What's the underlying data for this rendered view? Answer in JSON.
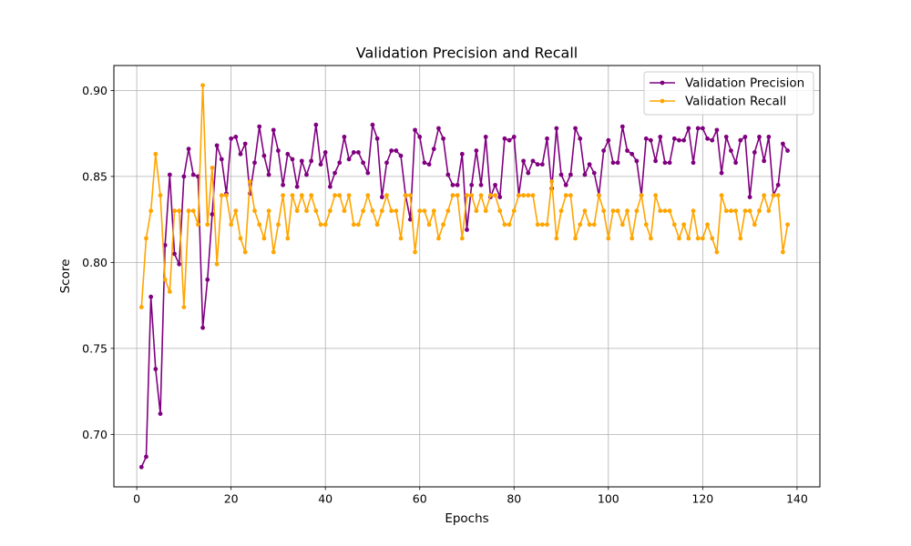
{
  "chart_data": {
    "type": "line",
    "title": "Validation Precision and Recall",
    "xlabel": "Epochs",
    "ylabel": "Score",
    "xlim": [
      -4.85,
      144.85
    ],
    "ylim": [
      0.6695,
      0.9145
    ],
    "xticks": [
      0,
      20,
      40,
      60,
      80,
      100,
      120,
      140
    ],
    "xtick_labels": [
      "0",
      "20",
      "40",
      "60",
      "80",
      "100",
      "120",
      "140"
    ],
    "yticks": [
      0.7,
      0.75,
      0.8,
      0.85,
      0.9
    ],
    "ytick_labels": [
      "0.70",
      "0.75",
      "0.80",
      "0.85",
      "0.90"
    ],
    "grid": true,
    "legend_position": "top-right",
    "x": [
      1,
      2,
      3,
      4,
      5,
      6,
      7,
      8,
      9,
      10,
      11,
      12,
      13,
      14,
      15,
      16,
      17,
      18,
      19,
      20,
      21,
      22,
      23,
      24,
      25,
      26,
      27,
      28,
      29,
      30,
      31,
      32,
      33,
      34,
      35,
      36,
      37,
      38,
      39,
      40,
      41,
      42,
      43,
      44,
      45,
      46,
      47,
      48,
      49,
      50,
      51,
      52,
      53,
      54,
      55,
      56,
      57,
      58,
      59,
      60,
      61,
      62,
      63,
      64,
      65,
      66,
      67,
      68,
      69,
      70,
      71,
      72,
      73,
      74,
      75,
      76,
      77,
      78,
      79,
      80,
      81,
      82,
      83,
      84,
      85,
      86,
      87,
      88,
      89,
      90,
      91,
      92,
      93,
      94,
      95,
      96,
      97,
      98,
      99,
      100,
      101,
      102,
      103,
      104,
      105,
      106,
      107,
      108,
      109,
      110,
      111,
      112,
      113,
      114,
      115,
      116,
      117,
      118,
      119,
      120,
      121,
      122,
      123,
      124,
      125,
      126,
      127,
      128,
      129,
      130,
      131,
      132,
      133,
      134,
      135,
      136,
      137,
      138
    ],
    "series": [
      {
        "name": "Validation Precision",
        "color": "#800080",
        "values": [
          0.681,
          0.687,
          0.78,
          0.738,
          0.712,
          0.81,
          0.851,
          0.805,
          0.799,
          0.85,
          0.866,
          0.851,
          0.85,
          0.762,
          0.79,
          0.828,
          0.868,
          0.86,
          0.84,
          0.872,
          0.873,
          0.863,
          0.869,
          0.84,
          0.858,
          0.879,
          0.862,
          0.851,
          0.877,
          0.865,
          0.845,
          0.863,
          0.86,
          0.844,
          0.859,
          0.851,
          0.859,
          0.88,
          0.857,
          0.864,
          0.844,
          0.852,
          0.858,
          0.873,
          0.86,
          0.864,
          0.864,
          0.858,
          0.852,
          0.88,
          0.872,
          0.838,
          0.858,
          0.865,
          0.865,
          0.862,
          0.839,
          0.825,
          0.877,
          0.873,
          0.858,
          0.857,
          0.866,
          0.878,
          0.872,
          0.851,
          0.845,
          0.845,
          0.863,
          0.819,
          0.845,
          0.865,
          0.845,
          0.873,
          0.838,
          0.845,
          0.838,
          0.872,
          0.871,
          0.873,
          0.839,
          0.859,
          0.852,
          0.859,
          0.857,
          0.857,
          0.872,
          0.843,
          0.878,
          0.851,
          0.845,
          0.851,
          0.878,
          0.872,
          0.851,
          0.857,
          0.852,
          0.839,
          0.865,
          0.871,
          0.858,
          0.858,
          0.879,
          0.865,
          0.863,
          0.859,
          0.839,
          0.872,
          0.871,
          0.859,
          0.873,
          0.858,
          0.858,
          0.872,
          0.871,
          0.871,
          0.878,
          0.858,
          0.878,
          0.878,
          0.872,
          0.871,
          0.877,
          0.852,
          0.873,
          0.865,
          0.858,
          0.871,
          0.873,
          0.838,
          0.864,
          0.873,
          0.859,
          0.873,
          0.839,
          0.845,
          0.869,
          0.865
        ]
      },
      {
        "name": "Validation Recall",
        "color": "#FFA500",
        "values": [
          0.774,
          0.814,
          0.83,
          0.863,
          0.839,
          0.79,
          0.783,
          0.83,
          0.83,
          0.774,
          0.83,
          0.83,
          0.822,
          0.903,
          0.822,
          0.855,
          0.799,
          0.839,
          0.839,
          0.822,
          0.83,
          0.814,
          0.806,
          0.847,
          0.83,
          0.822,
          0.814,
          0.83,
          0.806,
          0.822,
          0.839,
          0.814,
          0.839,
          0.83,
          0.839,
          0.83,
          0.839,
          0.83,
          0.822,
          0.822,
          0.83,
          0.839,
          0.839,
          0.83,
          0.839,
          0.822,
          0.822,
          0.83,
          0.839,
          0.83,
          0.822,
          0.83,
          0.839,
          0.83,
          0.83,
          0.814,
          0.839,
          0.839,
          0.806,
          0.83,
          0.83,
          0.822,
          0.83,
          0.814,
          0.822,
          0.83,
          0.839,
          0.839,
          0.814,
          0.839,
          0.839,
          0.83,
          0.839,
          0.83,
          0.839,
          0.839,
          0.83,
          0.822,
          0.822,
          0.83,
          0.839,
          0.839,
          0.839,
          0.839,
          0.822,
          0.822,
          0.822,
          0.847,
          0.814,
          0.83,
          0.839,
          0.839,
          0.814,
          0.822,
          0.83,
          0.822,
          0.822,
          0.839,
          0.83,
          0.814,
          0.83,
          0.83,
          0.822,
          0.83,
          0.814,
          0.83,
          0.839,
          0.822,
          0.814,
          0.839,
          0.83,
          0.83,
          0.83,
          0.822,
          0.814,
          0.822,
          0.814,
          0.83,
          0.814,
          0.814,
          0.822,
          0.814,
          0.806,
          0.839,
          0.83,
          0.83,
          0.83,
          0.814,
          0.83,
          0.83,
          0.822,
          0.83,
          0.839,
          0.83,
          0.839,
          0.839,
          0.806,
          0.822
        ]
      }
    ]
  }
}
